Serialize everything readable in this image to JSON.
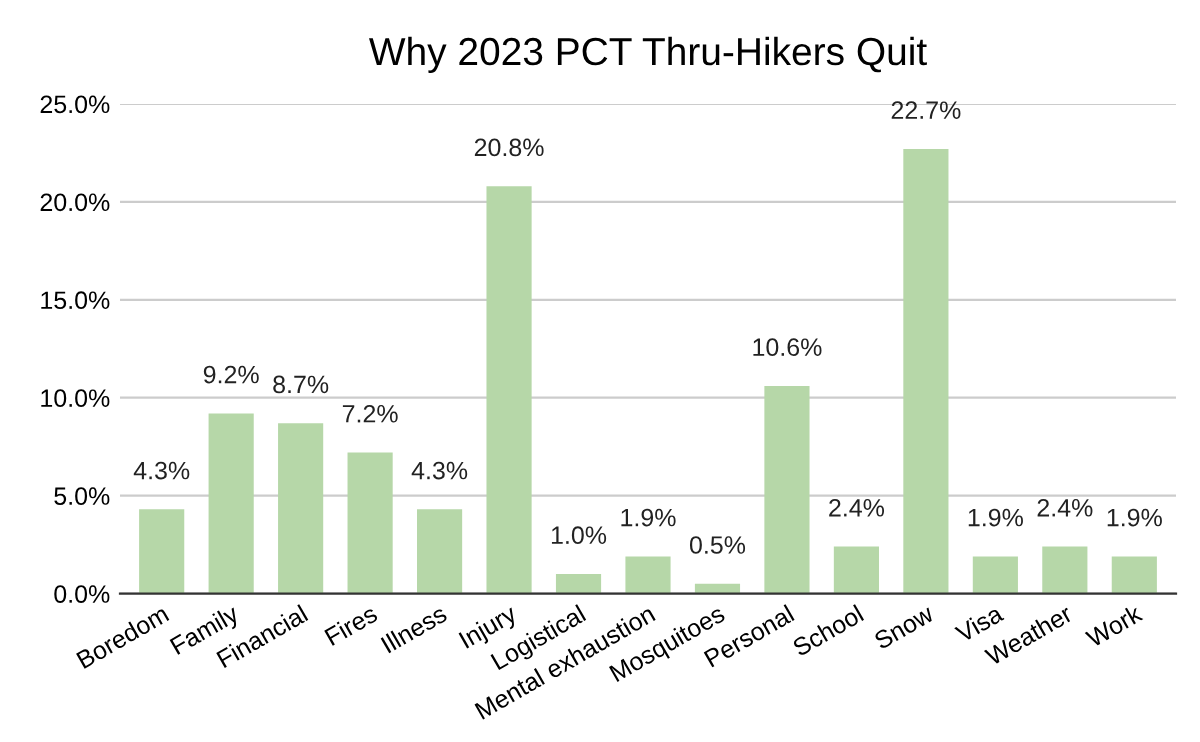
{
  "chart_data": {
    "type": "bar",
    "title": "Why 2023 PCT Thru-Hikers Quit",
    "categories": [
      "Boredom",
      "Family",
      "Financial",
      "Fires",
      "Illness",
      "Injury",
      "Logistical",
      "Mental exhaustion",
      "Mosquitoes",
      "Personal",
      "School",
      "Snow",
      "Visa",
      "Weather",
      "Work"
    ],
    "values": [
      4.3,
      9.2,
      8.7,
      7.2,
      4.3,
      20.8,
      1.0,
      1.9,
      0.5,
      10.6,
      2.4,
      22.7,
      1.9,
      2.4,
      1.9
    ],
    "value_labels": [
      "4.3%",
      "9.2%",
      "8.7%",
      "7.2%",
      "4.3%",
      "20.8%",
      "1.0%",
      "1.9%",
      "0.5%",
      "10.6%",
      "2.4%",
      "22.7%",
      "1.9%",
      "2.4%",
      "1.9%"
    ],
    "color": "#b6d7a8",
    "ylim": [
      0,
      25
    ],
    "yticks": [
      {
        "value": 0,
        "label": "0.0%"
      },
      {
        "value": 5,
        "label": "5.0%"
      },
      {
        "value": 10,
        "label": "10.0%"
      },
      {
        "value": 15,
        "label": "15.0%"
      },
      {
        "value": 20,
        "label": "20.0%"
      },
      {
        "value": 25,
        "label": "25.0%"
      }
    ],
    "grid": "y",
    "legend": false
  }
}
